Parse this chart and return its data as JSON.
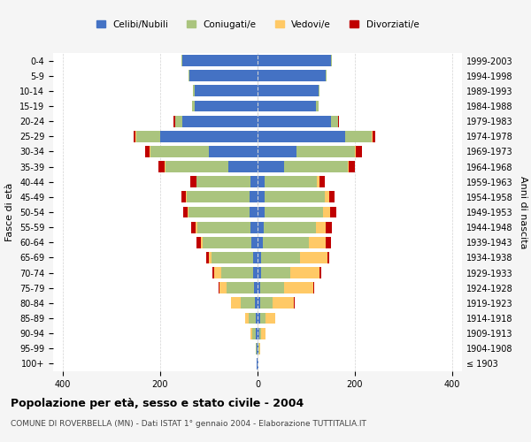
{
  "age_groups": [
    "100+",
    "95-99",
    "90-94",
    "85-89",
    "80-84",
    "75-79",
    "70-74",
    "65-69",
    "60-64",
    "55-59",
    "50-54",
    "45-49",
    "40-44",
    "35-39",
    "30-34",
    "25-29",
    "20-24",
    "15-19",
    "10-14",
    "5-9",
    "0-4"
  ],
  "birth_years": [
    "≤ 1903",
    "1904-1908",
    "1909-1913",
    "1914-1918",
    "1919-1923",
    "1924-1928",
    "1929-1933",
    "1934-1938",
    "1939-1943",
    "1944-1948",
    "1949-1953",
    "1954-1958",
    "1959-1963",
    "1964-1968",
    "1969-1973",
    "1974-1978",
    "1979-1983",
    "1984-1988",
    "1989-1993",
    "1994-1998",
    "1999-2003"
  ],
  "males_celibi": [
    1,
    1,
    3,
    3,
    5,
    8,
    10,
    10,
    12,
    14,
    16,
    16,
    15,
    60,
    100,
    200,
    155,
    130,
    130,
    140,
    155
  ],
  "males_coniugati": [
    0,
    2,
    8,
    15,
    30,
    55,
    65,
    85,
    100,
    110,
    125,
    130,
    110,
    130,
    120,
    50,
    15,
    5,
    2,
    2,
    2
  ],
  "males_vedovi": [
    0,
    1,
    4,
    8,
    20,
    15,
    15,
    5,
    5,
    3,
    2,
    1,
    1,
    1,
    1,
    1,
    0,
    0,
    0,
    0,
    0
  ],
  "males_divorziati": [
    0,
    0,
    0,
    0,
    0,
    2,
    2,
    5,
    8,
    10,
    10,
    10,
    12,
    12,
    10,
    3,
    2,
    0,
    0,
    0,
    0
  ],
  "females_celibi": [
    1,
    1,
    3,
    5,
    5,
    5,
    8,
    8,
    10,
    12,
    14,
    14,
    14,
    55,
    80,
    180,
    150,
    120,
    125,
    140,
    150
  ],
  "females_coniugati": [
    0,
    2,
    5,
    12,
    25,
    50,
    60,
    80,
    95,
    108,
    120,
    125,
    108,
    130,
    120,
    55,
    15,
    5,
    2,
    2,
    2
  ],
  "females_vedovi": [
    1,
    2,
    8,
    20,
    45,
    60,
    60,
    55,
    35,
    20,
    15,
    8,
    5,
    3,
    2,
    2,
    1,
    0,
    0,
    0,
    0
  ],
  "females_divorziati": [
    0,
    0,
    0,
    0,
    1,
    2,
    2,
    5,
    10,
    12,
    12,
    12,
    12,
    12,
    12,
    4,
    2,
    0,
    0,
    0,
    0
  ],
  "color_celibi": "#4472c4",
  "color_coniugati": "#aac47e",
  "color_vedovi": "#ffc966",
  "color_divorziati": "#c00000",
  "title": "Popolazione per età, sesso e stato civile - 2004",
  "subtitle": "COMUNE DI ROVERBELLA (MN) - Dati ISTAT 1° gennaio 2004 - Elaborazione TUTTITALIA.IT",
  "ylabel_left": "Fasce di età",
  "ylabel_right": "Anni di nascita",
  "xlim": 420,
  "background_color": "#f5f5f5",
  "plot_bg": "#ffffff"
}
